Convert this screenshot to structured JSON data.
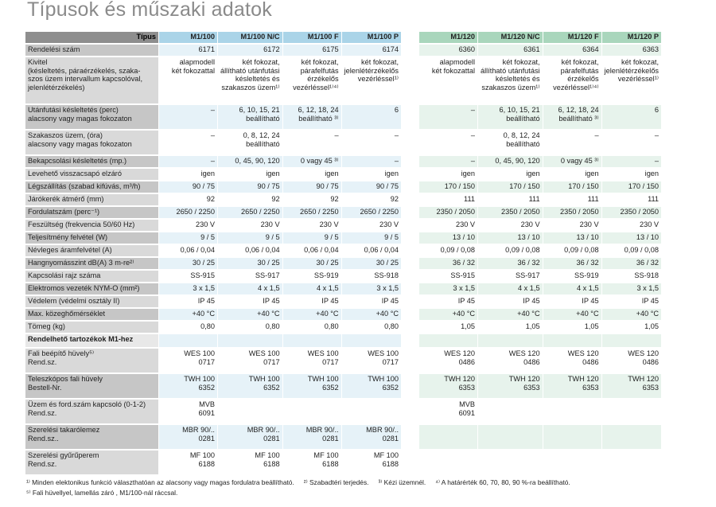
{
  "title": "Típusok és műszaki adatok",
  "header": {
    "label": "Típus",
    "cols": [
      "M1/100",
      "M1/100 N/C",
      "M1/100 F",
      "M1/100 P",
      "M1/120",
      "M1/120 N/C",
      "M1/120 F",
      "M1/120 P"
    ]
  },
  "rows": [
    {
      "label": [
        "Rendelési szám"
      ],
      "vals": [
        [
          "6171"
        ],
        [
          "6172"
        ],
        [
          "6175"
        ],
        [
          "6174"
        ],
        [
          "6360"
        ],
        [
          "6361"
        ],
        [
          "6364"
        ],
        [
          "6363"
        ]
      ]
    },
    {
      "label": [
        "Kivitel",
        "(késleltetés, páraérzékelés, szaka-",
        "szos üzem intervallum kapcsolóval,",
        "jelenlétérzékelés)"
      ],
      "vals": [
        [
          "alapmodell",
          "két fokozattal"
        ],
        [
          "két fokozat,",
          "állítható utánfutási",
          "késleltetés és",
          "szakaszos üzem¹⁾"
        ],
        [
          "két fokozat,",
          "párafelfutás",
          "érzékelős",
          "vezérléssel¹⁾⁴⁾"
        ],
        [
          "két fokozat,",
          "jelenlétérzékelős",
          "vezérléssel¹⁾"
        ],
        [
          "alapmodell",
          "két fokozattal"
        ],
        [
          "két fokozat,",
          "állítható utánfutási",
          "késleltetés és",
          "szakaszos üzem¹⁾"
        ],
        [
          "két fokozat,",
          "párafelfutás",
          "érzékelős",
          "vezérléssel¹⁾⁴⁾"
        ],
        [
          "két fokozat,",
          "jelenlétérzékelős",
          "vezérléssel¹⁾"
        ]
      ]
    },
    {
      "label": [
        "Utánfutási késleltetés (perc)",
        "alacsony vagy magas fokozaton"
      ],
      "vals": [
        [
          "–"
        ],
        [
          "6, 10, 15, 21",
          "beállítható"
        ],
        [
          "6, 12, 18, 24",
          "beállítható ³⁾"
        ],
        [
          "6"
        ],
        [
          "–"
        ],
        [
          "6, 10, 15, 21",
          "beállítható"
        ],
        [
          "6, 12, 18, 24",
          "beállítható ³⁾"
        ],
        [
          "6"
        ]
      ]
    },
    {
      "label": [
        "Szakaszos üzem, (óra)",
        "alacsony vagy magas fokozaton"
      ],
      "vals": [
        [
          "–"
        ],
        [
          "0, 8, 12, 24",
          "beállítható"
        ],
        [
          "–"
        ],
        [
          "–"
        ],
        [
          "–"
        ],
        [
          "0, 8, 12, 24",
          "beállítható"
        ],
        [
          "–"
        ],
        [
          "–"
        ]
      ]
    },
    {
      "label": [
        "Bekapcsolási késleltetés (mp.)"
      ],
      "vals": [
        [
          "–"
        ],
        [
          "0, 45, 90, 120"
        ],
        [
          "0 vagy 45 ³⁾"
        ],
        [
          "–"
        ],
        [
          "–"
        ],
        [
          "0, 45, 90, 120"
        ],
        [
          "0 vagy 45 ³⁾"
        ],
        [
          "–"
        ]
      ]
    },
    {
      "label": [
        "Levehető visszacsapó elzáró"
      ],
      "vals": [
        [
          "igen"
        ],
        [
          "igen"
        ],
        [
          "igen"
        ],
        [
          "igen"
        ],
        [
          "igen"
        ],
        [
          "igen"
        ],
        [
          "igen"
        ],
        [
          "igen"
        ]
      ]
    },
    {
      "label": [
        "Légszállítás (szabad kifúvás, m³/h)"
      ],
      "vals": [
        [
          "90 / 75"
        ],
        [
          "90 / 75"
        ],
        [
          "90 / 75"
        ],
        [
          "90 / 75"
        ],
        [
          "170 / 150"
        ],
        [
          "170 / 150"
        ],
        [
          "170 / 150"
        ],
        [
          "170 / 150"
        ]
      ]
    },
    {
      "label": [
        "Járókerék átmérő (mm)"
      ],
      "vals": [
        [
          "92"
        ],
        [
          "92"
        ],
        [
          "92"
        ],
        [
          "92"
        ],
        [
          "111"
        ],
        [
          "111"
        ],
        [
          "111"
        ],
        [
          "111"
        ]
      ]
    },
    {
      "label": [
        "Fordulatszám (perc⁻¹)"
      ],
      "vals": [
        [
          "2650 / 2250"
        ],
        [
          "2650 / 2250"
        ],
        [
          "2650 / 2250"
        ],
        [
          "2650 / 2250"
        ],
        [
          "2350 / 2050"
        ],
        [
          "2350 / 2050"
        ],
        [
          "2350 / 2050"
        ],
        [
          "2350 / 2050"
        ]
      ]
    },
    {
      "label": [
        "Feszültség (frekvencia 50/60 Hz)"
      ],
      "vals": [
        [
          "230 V"
        ],
        [
          "230 V"
        ],
        [
          "230 V"
        ],
        [
          "230 V"
        ],
        [
          "230 V"
        ],
        [
          "230 V"
        ],
        [
          "230 V"
        ],
        [
          "230 V"
        ]
      ]
    },
    {
      "label": [
        "Teljesítmény felvétel (W)"
      ],
      "vals": [
        [
          "9 / 5"
        ],
        [
          "9 / 5"
        ],
        [
          "9 / 5"
        ],
        [
          "9 / 5"
        ],
        [
          "13 / 10"
        ],
        [
          "13 / 10"
        ],
        [
          "13 / 10"
        ],
        [
          "13 / 10"
        ]
      ]
    },
    {
      "label": [
        "Névleges áramfelvétel (A)"
      ],
      "vals": [
        [
          "0,06 / 0,04"
        ],
        [
          "0,06 / 0,04"
        ],
        [
          "0,06 / 0,04"
        ],
        [
          "0,06 / 0,04"
        ],
        [
          "0,09 / 0,08"
        ],
        [
          "0,09 / 0,08"
        ],
        [
          "0,09 / 0,08"
        ],
        [
          "0,09 / 0,08"
        ]
      ]
    },
    {
      "label": [
        "Hangnyomásszint dB(A) 3 m-re²⁾"
      ],
      "vals": [
        [
          "30 / 25"
        ],
        [
          "30 / 25"
        ],
        [
          "30 / 25"
        ],
        [
          "30 / 25"
        ],
        [
          "36 / 32"
        ],
        [
          "36 / 32"
        ],
        [
          "36 / 32"
        ],
        [
          "36 / 32"
        ]
      ]
    },
    {
      "label": [
        "Kapcsolási rajz száma"
      ],
      "vals": [
        [
          "SS-915"
        ],
        [
          "SS-917"
        ],
        [
          "SS-919"
        ],
        [
          "SS-918"
        ],
        [
          "SS-915"
        ],
        [
          "SS-917"
        ],
        [
          "SS-919"
        ],
        [
          "SS-918"
        ]
      ]
    },
    {
      "label": [
        "Elektromos vezeték NYM-O (mm²)"
      ],
      "vals": [
        [
          "3 x 1,5"
        ],
        [
          "4 x 1,5"
        ],
        [
          "4 x 1,5"
        ],
        [
          "3 x 1,5"
        ],
        [
          "3 x 1,5"
        ],
        [
          "4 x 1,5"
        ],
        [
          "4 x 1,5"
        ],
        [
          "3 x 1,5"
        ]
      ]
    },
    {
      "label": [
        "Védelem (védelmi osztály  II)"
      ],
      "vals": [
        [
          "IP 45"
        ],
        [
          "IP 45"
        ],
        [
          "IP 45"
        ],
        [
          "IP 45"
        ],
        [
          "IP 45"
        ],
        [
          "IP 45"
        ],
        [
          "IP 45"
        ],
        [
          "IP 45"
        ]
      ]
    },
    {
      "label": [
        "Max. közeghőmérséklet"
      ],
      "vals": [
        [
          "+40 °C"
        ],
        [
          "+40 °C"
        ],
        [
          "+40 °C"
        ],
        [
          "+40 °C"
        ],
        [
          "+40 °C"
        ],
        [
          "+40 °C"
        ],
        [
          "+40 °C"
        ],
        [
          "+40 °C"
        ]
      ]
    },
    {
      "label": [
        "Tömeg (kg)"
      ],
      "vals": [
        [
          "0,80"
        ],
        [
          "0,80"
        ],
        [
          "0,80"
        ],
        [
          "0,80"
        ],
        [
          "1,05"
        ],
        [
          "1,05"
        ],
        [
          "1,05"
        ],
        [
          "1,05"
        ]
      ]
    },
    {
      "section": true,
      "label": [
        "Rendelhető tartozékok M1-hez"
      ],
      "vals": [
        [
          ""
        ],
        [
          ""
        ],
        [
          ""
        ],
        [
          ""
        ],
        [
          ""
        ],
        [
          ""
        ],
        [
          ""
        ],
        [
          ""
        ]
      ]
    },
    {
      "label": [
        "Fali beépítő hüvely⁵⁾",
        "Rend.sz."
      ],
      "vals": [
        [
          "WES 100",
          "0717"
        ],
        [
          "WES 100",
          "0717"
        ],
        [
          "WES 100",
          "0717"
        ],
        [
          "WES 100",
          "0717"
        ],
        [
          "WES 120",
          "0486"
        ],
        [
          "WES 120",
          "0486"
        ],
        [
          "WES 120",
          "0486"
        ],
        [
          "WES 120",
          "0486"
        ]
      ]
    },
    {
      "label": [
        "Teleszkópos fali hüvely",
        "Bestell-Nr."
      ],
      "vals": [
        [
          "TWH 100",
          "6352"
        ],
        [
          "TWH 100",
          "6352"
        ],
        [
          "TWH 100",
          "6352"
        ],
        [
          "TWH 100",
          "6352"
        ],
        [
          "TWH 120",
          "6353"
        ],
        [
          "TWH 120",
          "6353"
        ],
        [
          "TWH 120",
          "6353"
        ],
        [
          "TWH 120",
          "6353"
        ]
      ]
    },
    {
      "label": [
        "Üzem és ford.szám kapcsoló (0-1-2)",
        "Rend.sz."
      ],
      "vals": [
        [
          "MVB",
          "6091"
        ],
        [
          ""
        ],
        [
          ""
        ],
        [
          ""
        ],
        [
          "MVB",
          "6091"
        ],
        [
          ""
        ],
        [
          ""
        ],
        [
          ""
        ]
      ]
    },
    {
      "label": [
        "Szerelési takarólemez",
        "Rend.sz.."
      ],
      "vals": [
        [
          "MBR 90/..",
          "0281"
        ],
        [
          "MBR 90/..",
          "0281"
        ],
        [
          "MBR 90/..",
          "0281"
        ],
        [
          "MBR 90/..",
          "0281"
        ],
        [
          ""
        ],
        [
          ""
        ],
        [
          ""
        ],
        [
          ""
        ]
      ]
    },
    {
      "label": [
        "Szerelési gyűrűperem",
        "Rend.sz."
      ],
      "vals": [
        [
          "MF 100",
          "6188"
        ],
        [
          "MF 100",
          "6188"
        ],
        [
          "MF 100",
          "6188"
        ],
        [
          "MF 100",
          "6188"
        ],
        [
          ""
        ],
        [
          ""
        ],
        [
          ""
        ],
        [
          ""
        ]
      ]
    }
  ],
  "notes": [
    [
      "¹⁾ Minden elektonikus funkció választhatóan az alacsony vagy magas fordulatra beállítható.",
      "²⁾ Szabadtéri terjedés.",
      "³⁾ Kézi üzemnél.",
      "⁴⁾ A határérték  60, 70, 80, 90 %-ra beállítható."
    ],
    [
      "⁵⁾ Fali hüvellyel, lamellás záró ,  M1/100-nál ráccsal."
    ]
  ]
}
